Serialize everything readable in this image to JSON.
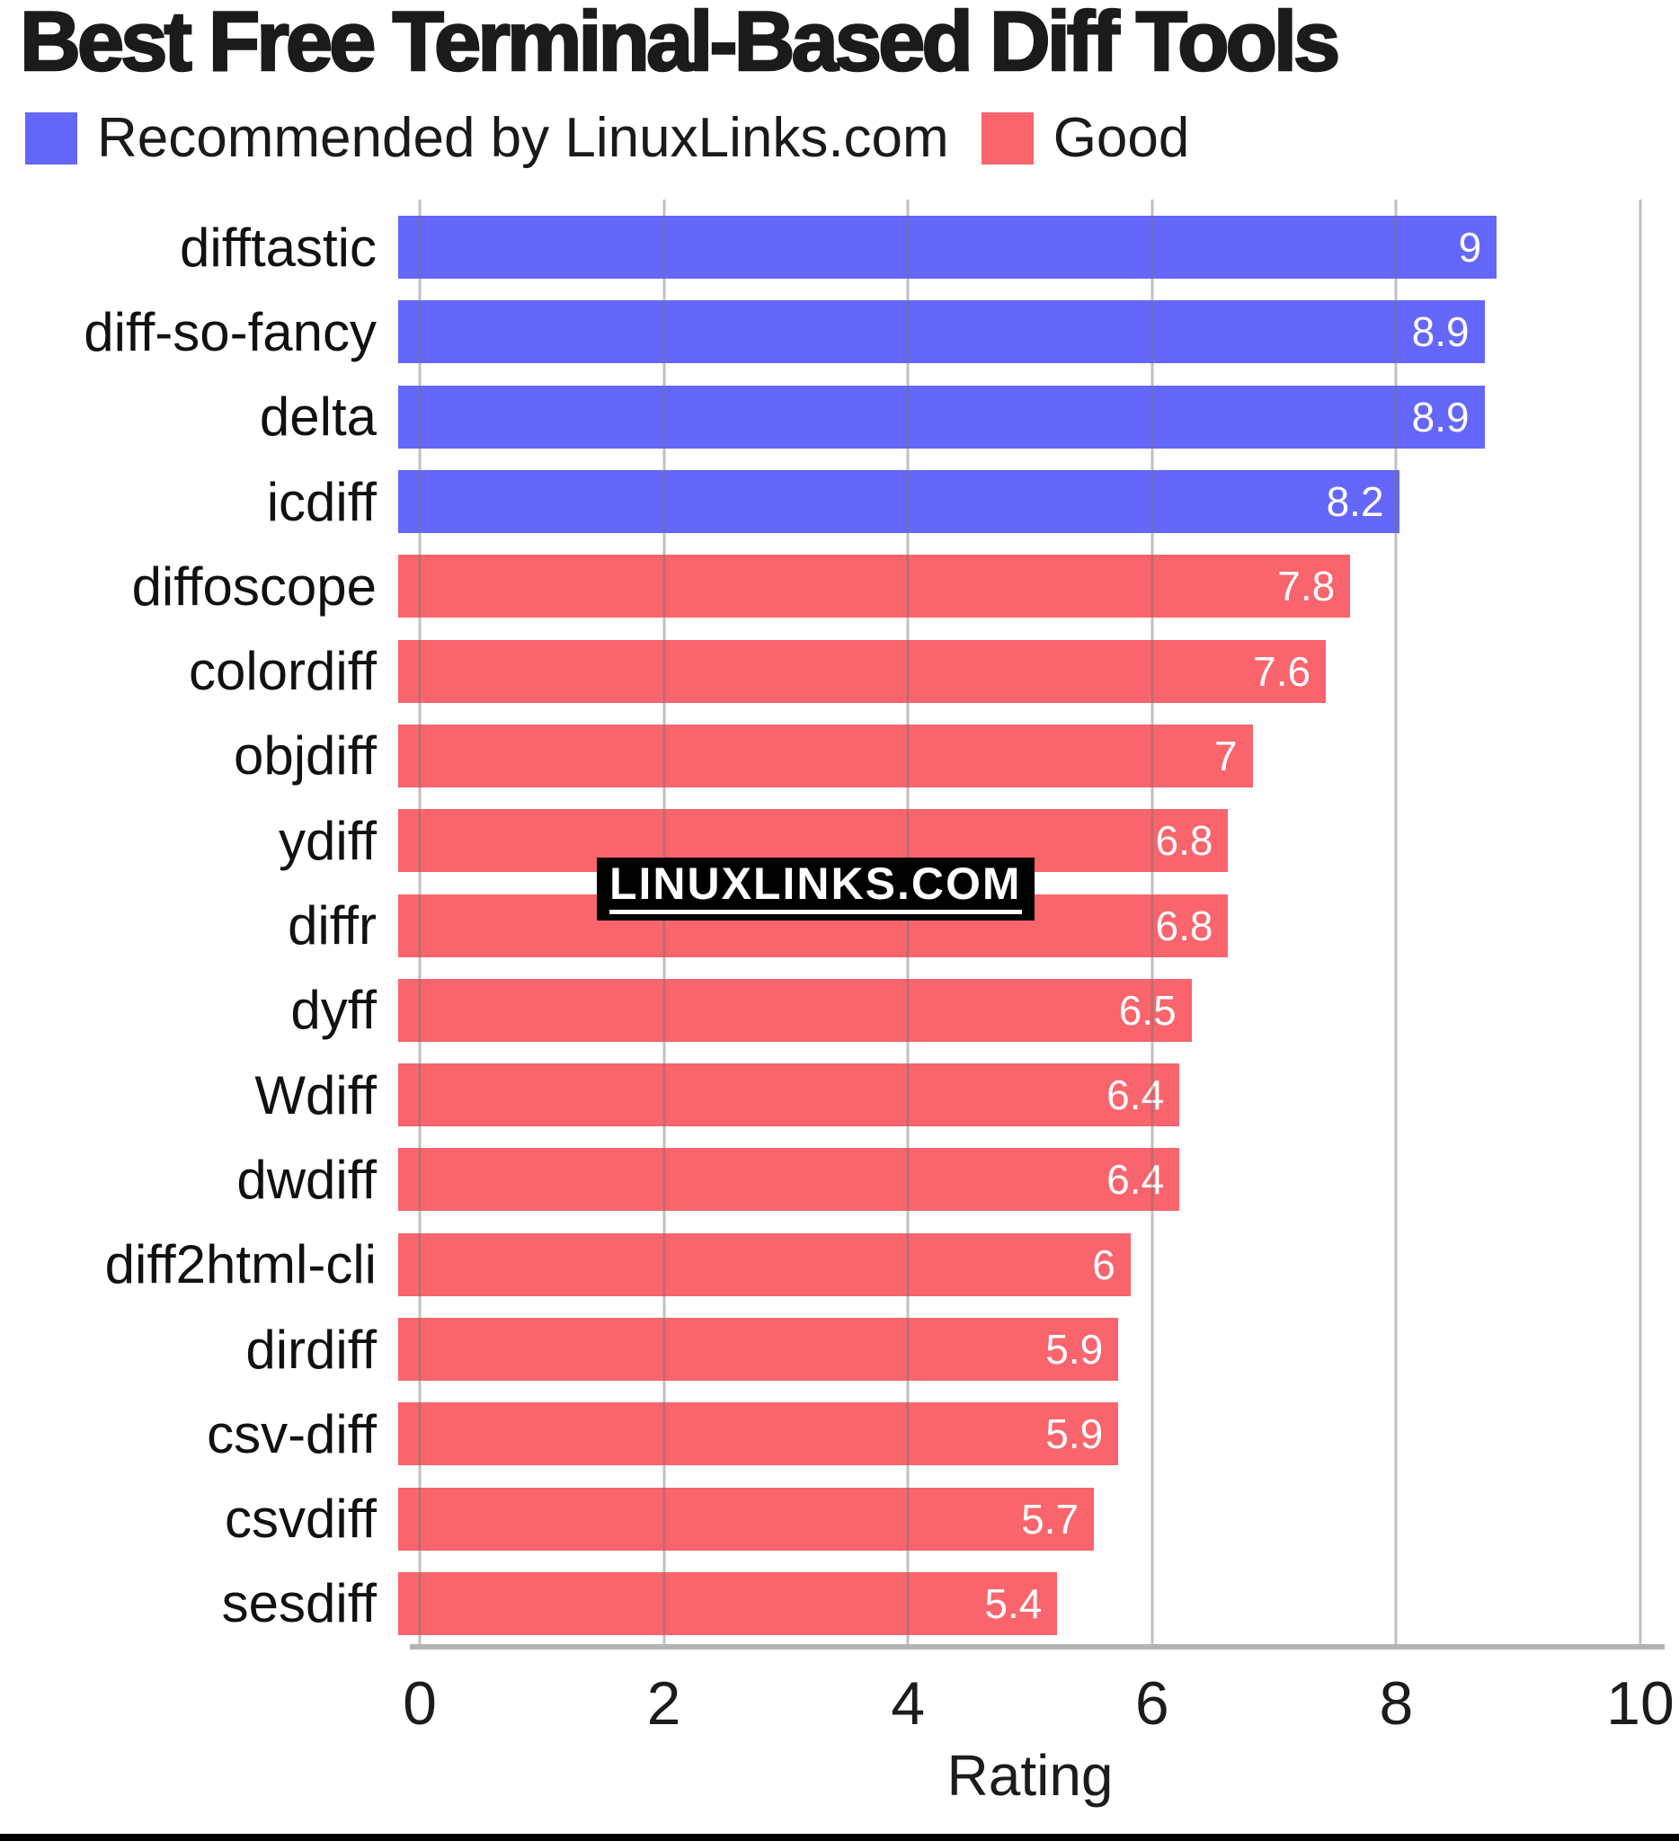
{
  "page": {
    "title": "Best Free Terminal-Based Diff Tools",
    "watermark": "LINUXLINKS.COM"
  },
  "legend": {
    "items": [
      {
        "label": "Recommended by LinuxLinks.com",
        "color": "#6567fa",
        "group": "recommended"
      },
      {
        "label": "Good",
        "color": "#fa646c",
        "group": "good"
      }
    ]
  },
  "colors": {
    "recommended": "#6567fa",
    "good": "#fa646c",
    "grid": "#c9c9c9",
    "axis": "#b3b3b3",
    "value_label": "#ffffff",
    "watermark_bg": "#000000",
    "watermark_fg": "#ffffff"
  },
  "chart_data": {
    "type": "bar",
    "orientation": "horizontal",
    "title": "Best Free Terminal-Based Diff Tools",
    "xlabel": "Rating",
    "ylabel": "",
    "xlim": [
      0,
      10
    ],
    "x_ticks": [
      0,
      2,
      4,
      6,
      8,
      10
    ],
    "grid": true,
    "legend_position": "top-left",
    "categories": [
      "difftastic",
      "diff-so-fancy",
      "delta",
      "icdiff",
      "diffoscope",
      "colordiff",
      "objdiff",
      "ydiff",
      "diffr",
      "dyff",
      "Wdiff",
      "dwdiff",
      "diff2html-cli",
      "dirdiff",
      "csv-diff",
      "csvdiff",
      "sesdiff"
    ],
    "values": [
      9,
      8.9,
      8.9,
      8.2,
      7.8,
      7.6,
      7,
      6.8,
      6.8,
      6.5,
      6.4,
      6.4,
      6,
      5.9,
      5.9,
      5.7,
      5.4
    ],
    "display_values": [
      "9",
      "8.9",
      "8.9",
      "8.2",
      "7.8",
      "7.6",
      "7",
      "6.8",
      "6.8",
      "6.5",
      "6.4",
      "6.4",
      "6",
      "5.9",
      "5.9",
      "5.7",
      "5.4"
    ],
    "groups": [
      "recommended",
      "recommended",
      "recommended",
      "recommended",
      "good",
      "good",
      "good",
      "good",
      "good",
      "good",
      "good",
      "good",
      "good",
      "good",
      "good",
      "good",
      "good"
    ],
    "series": [
      {
        "name": "Recommended by LinuxLinks.com",
        "color": "#6567fa",
        "categories": [
          "difftastic",
          "diff-so-fancy",
          "delta",
          "icdiff"
        ],
        "values": [
          9,
          8.9,
          8.9,
          8.2
        ]
      },
      {
        "name": "Good",
        "color": "#fa646c",
        "categories": [
          "diffoscope",
          "colordiff",
          "objdiff",
          "ydiff",
          "diffr",
          "dyff",
          "Wdiff",
          "dwdiff",
          "diff2html-cli",
          "dirdiff",
          "csv-diff",
          "csvdiff",
          "sesdiff"
        ],
        "values": [
          7.8,
          7.6,
          7,
          6.8,
          6.8,
          6.5,
          6.4,
          6.4,
          6,
          5.9,
          5.9,
          5.7,
          5.4
        ]
      }
    ]
  }
}
